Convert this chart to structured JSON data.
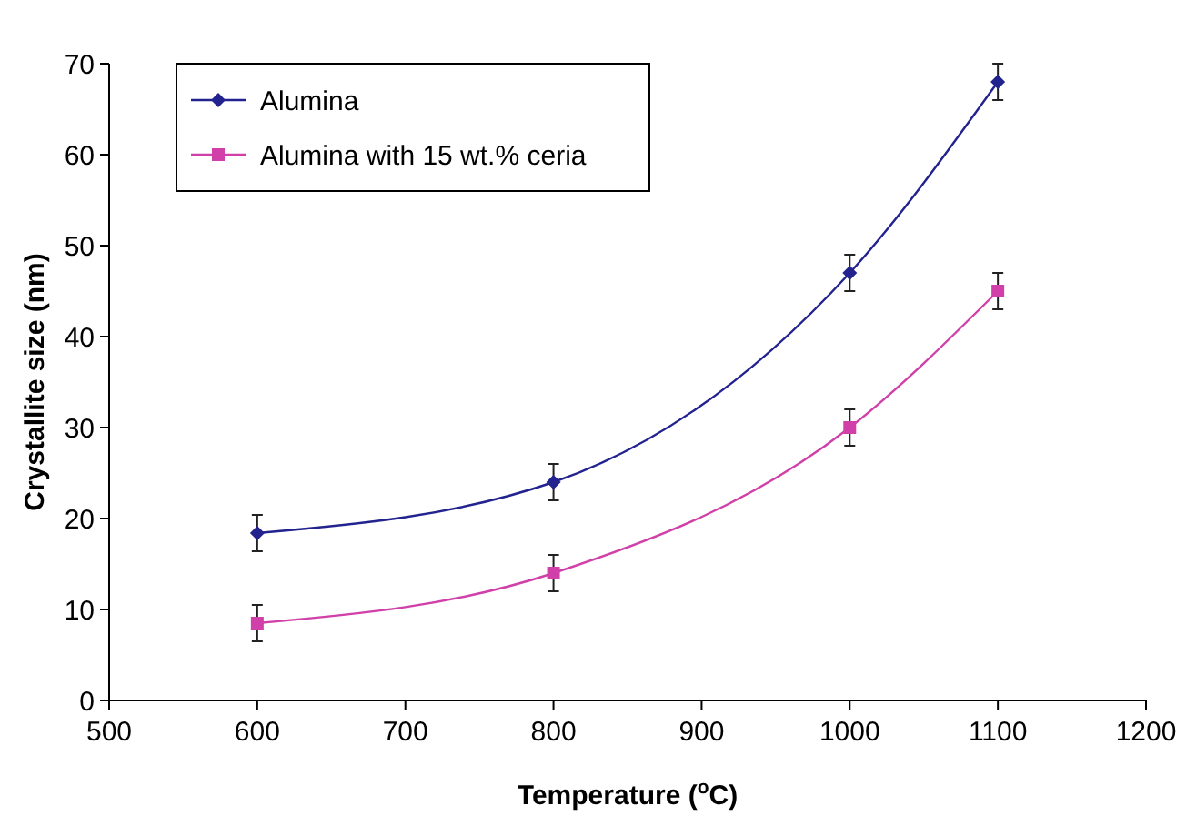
{
  "chart_data": {
    "type": "line",
    "xlabel": "Temperature ($^{o}$C)",
    "ylabel": "Crystallite size (nm)",
    "x": [
      600,
      800,
      1000,
      1100
    ],
    "series": [
      {
        "name": "Alumina",
        "color": "#23238f",
        "marker": "diamond",
        "values": [
          18.4,
          24,
          47,
          68
        ],
        "errors": [
          2,
          2,
          2,
          2
        ]
      },
      {
        "name": "Alumina with 15 wt.% ceria",
        "color": "#d040a8",
        "marker": "square",
        "values": [
          8.5,
          14,
          30,
          45
        ],
        "errors": [
          2,
          2,
          2,
          2
        ]
      }
    ],
    "xlim": [
      500,
      1200
    ],
    "xticks": [
      500,
      600,
      700,
      800,
      900,
      1000,
      1100,
      1200
    ],
    "ylim": [
      0,
      70
    ],
    "yticks": [
      0,
      10,
      20,
      30,
      40,
      50,
      60,
      70
    ],
    "grid": false,
    "legend": "top left",
    "line_style": "solid"
  }
}
